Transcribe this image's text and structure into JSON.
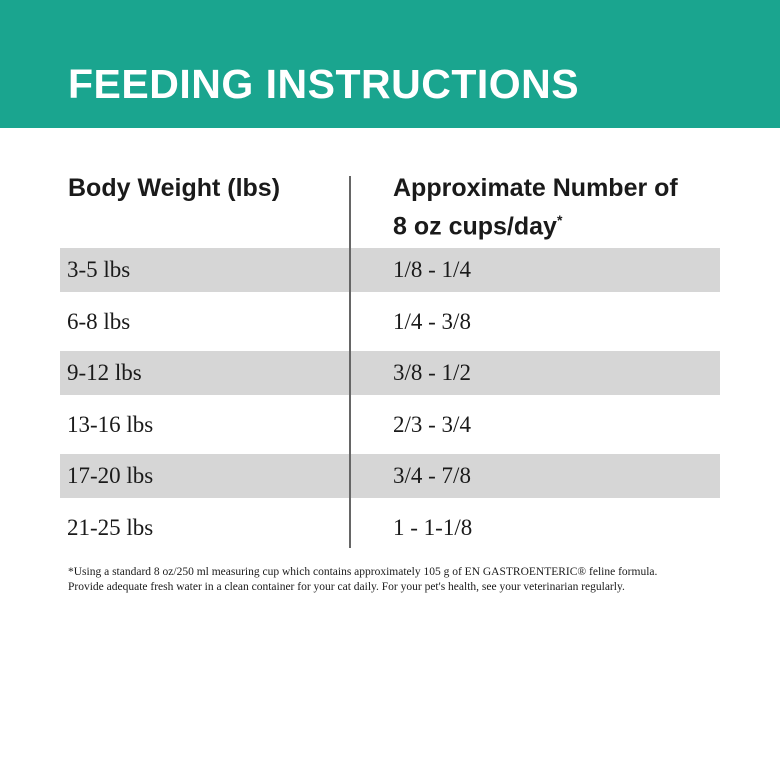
{
  "header": {
    "title": "FEEDING INSTRUCTIONS"
  },
  "table": {
    "headers": [
      "Body Weight (lbs)",
      "Approximate Number of 8 oz cups/day"
    ],
    "header_marker": "*",
    "rows": [
      [
        "3-5 lbs",
        "1/8 - 1/4"
      ],
      [
        "6-8 lbs",
        "1/4 - 3/8"
      ],
      [
        "9-12 lbs",
        "3/8 - 1/2"
      ],
      [
        "13-16 lbs",
        "2/3 - 3/4"
      ],
      [
        "17-20 lbs",
        "3/4 - 7/8"
      ],
      [
        "21-25 lbs",
        "1 - 1-1/8"
      ]
    ]
  },
  "footnote": [
    "*Using a standard 8 oz/250 ml measuring cup which contains approximately 105 g of EN GASTROENTERIC® feline formula.",
    "Provide adequate fresh water in a clean container for your cat daily. For your pet's health, see your veterinarian regularly."
  ]
}
